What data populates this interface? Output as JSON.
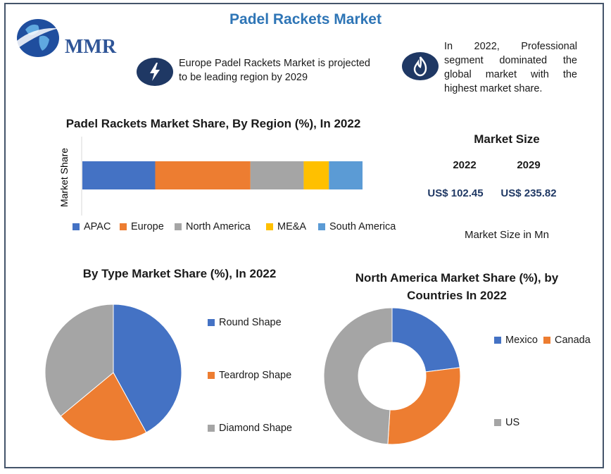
{
  "header": {
    "title": "Padel Rackets Market",
    "logo_text": "MMR"
  },
  "callouts": [
    {
      "icon": "lightning-icon",
      "text": "Europe Padel Rackets Market is projected to be leading region by 2029"
    },
    {
      "icon": "flame-icon",
      "text": "In 2022, Professional segment dominated the global market with the highest market share."
    }
  ],
  "market_size": {
    "heading": "Market Size",
    "years": [
      "2022",
      "2029"
    ],
    "values": [
      "US$ 102.45",
      "US$ 235.82"
    ],
    "note": "Market Size in Mn"
  },
  "colors": {
    "blue": "#4472c4",
    "orange": "#ed7d31",
    "gray": "#a5a5a5",
    "yellow": "#ffc000",
    "light_blue": "#5b9bd5",
    "navy": "#1f3864",
    "title_blue": "#2e75b6"
  },
  "chart_data": [
    {
      "type": "bar",
      "orientation": "horizontal-stacked",
      "title": "Padel Rackets Market Share, By Region (%), In 2022",
      "xlabel": "",
      "ylabel": "Market Share",
      "categories": [
        ""
      ],
      "series": [
        {
          "name": "APAC",
          "values": [
            26
          ],
          "color": "#4472c4"
        },
        {
          "name": "Europe",
          "values": [
            34
          ],
          "color": "#ed7d31"
        },
        {
          "name": "North America",
          "values": [
            19
          ],
          "color": "#a5a5a5"
        },
        {
          "name": "ME&A",
          "values": [
            9
          ],
          "color": "#ffc000"
        },
        {
          "name": "South America",
          "values": [
            12
          ],
          "color": "#5b9bd5"
        }
      ],
      "legend": "bottom",
      "grid": false
    },
    {
      "type": "pie",
      "title": "By Type Market Share (%), In 2022",
      "labels": [
        "Round Shape",
        "Teardrop Shape",
        "Diamond Shape"
      ],
      "values": [
        42,
        22,
        36
      ],
      "colors": [
        "#4472c4",
        "#ed7d31",
        "#a5a5a5"
      ],
      "legend": "right"
    },
    {
      "type": "pie",
      "subtype": "donut",
      "title": "North America Market Share (%), by Countries In 2022",
      "labels": [
        "Mexico",
        "Canada",
        "US"
      ],
      "values": [
        23,
        28,
        49
      ],
      "colors": [
        "#4472c4",
        "#ed7d31",
        "#a5a5a5"
      ],
      "legend": "right"
    }
  ]
}
